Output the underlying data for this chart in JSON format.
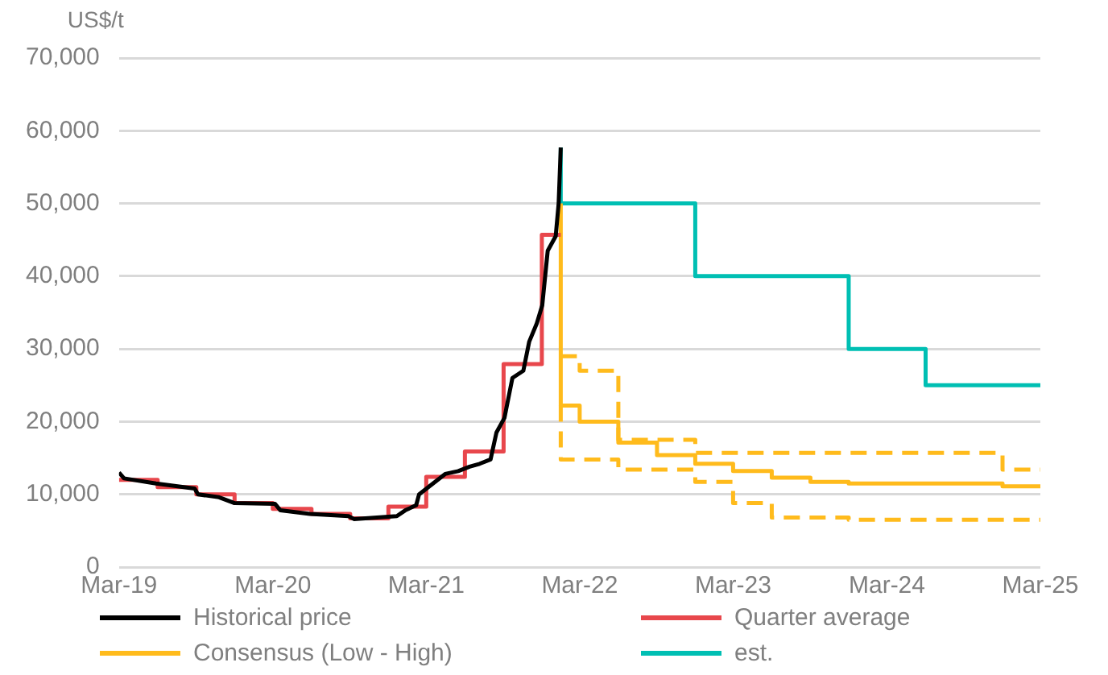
{
  "chart_data": {
    "type": "line",
    "ylabel": "US$/t",
    "legend": "bottom",
    "grid": "y",
    "line_style": "solid",
    "marker": "none",
    "ylim": [
      0,
      70000
    ],
    "yticks": [
      {
        "value": 0,
        "label": "0"
      },
      {
        "value": 10000,
        "label": "10,000"
      },
      {
        "value": 20000,
        "label": "20,000"
      },
      {
        "value": 30000,
        "label": "30,000"
      },
      {
        "value": 40000,
        "label": "40,000"
      },
      {
        "value": 50000,
        "label": "50,000"
      },
      {
        "value": 60000,
        "label": "60,000"
      },
      {
        "value": 70000,
        "label": "70,000"
      }
    ],
    "xlim": [
      "2019-03-01",
      "2025-03-01"
    ],
    "xticks": [
      {
        "value": "2019-03-01",
        "label": "Mar-19"
      },
      {
        "value": "2020-03-01",
        "label": "Mar-20"
      },
      {
        "value": "2021-03-01",
        "label": "Mar-21"
      },
      {
        "value": "2022-03-01",
        "label": "Mar-22"
      },
      {
        "value": "2023-03-01",
        "label": "Mar-23"
      },
      {
        "value": "2024-03-01",
        "label": "Mar-24"
      },
      {
        "value": "2025-03-01",
        "label": "Mar-25"
      }
    ],
    "series": [
      {
        "name": "Historical price",
        "type": "line",
        "color": "#000000",
        "x": [
          "2019-03-01",
          "2019-03-13",
          "2019-05-28",
          "2019-08-28",
          "2019-09-05",
          "2019-10-25",
          "2019-12-01",
          "2020-03-06",
          "2020-03-19",
          "2020-05-28",
          "2020-08-28",
          "2020-09-10",
          "2020-12-21",
          "2021-01-10",
          "2021-02-05",
          "2021-02-12",
          "2021-03-06",
          "2021-04-15",
          "2021-05-16",
          "2021-06-12",
          "2021-07-06",
          "2021-08-01",
          "2021-08-15",
          "2021-09-03",
          "2021-09-22",
          "2021-10-18",
          "2021-11-01",
          "2021-11-19",
          "2021-12-02",
          "2021-12-15",
          "2022-01-03",
          "2022-01-10",
          "2022-01-15"
        ],
        "values": [
          13000,
          12200,
          11500,
          10800,
          10000,
          9600,
          8800,
          8700,
          7800,
          7300,
          7000,
          6600,
          7000,
          7800,
          8500,
          10000,
          11000,
          12800,
          13200,
          13800,
          14200,
          14800,
          18500,
          20500,
          26000,
          27000,
          31000,
          33500,
          36000,
          43500,
          45500,
          50000,
          57700
        ]
      },
      {
        "name": "Quarter average",
        "type": "step",
        "color": "#e8474c",
        "x": [
          "2019-03-01",
          "2019-06-01",
          "2019-09-01",
          "2019-12-01",
          "2020-03-01",
          "2020-06-01",
          "2020-09-01",
          "2020-12-01",
          "2021-03-01",
          "2021-06-01",
          "2021-09-01",
          "2021-12-01",
          "2022-01-15"
        ],
        "values": [
          12000,
          11000,
          10000,
          8800,
          8000,
          7300,
          6700,
          8300,
          12400,
          15900,
          27900,
          45700,
          45700
        ]
      },
      {
        "name": "Consensus (Low - High)",
        "type": "step",
        "color": "#ffbb1c",
        "x": [
          "2022-01-15",
          "2022-01-15",
          "2022-03-01",
          "2022-06-01",
          "2022-09-01",
          "2022-12-01",
          "2023-03-01",
          "2023-06-01",
          "2023-09-01",
          "2023-12-01",
          "2024-12-01",
          "2025-03-01"
        ],
        "values": [
          50000,
          22200,
          20000,
          17100,
          15400,
          14200,
          13200,
          12300,
          11700,
          11500,
          11100,
          11100
        ]
      },
      {
        "type": "step",
        "color": "#ffbb1c",
        "line_style": "dashed",
        "x": [
          "2022-01-15",
          "2022-03-01",
          "2022-06-01",
          "2022-12-01",
          "2024-12-01",
          "2025-03-01"
        ],
        "values": [
          29000,
          27000,
          17500,
          15700,
          13400,
          13400
        ]
      },
      {
        "type": "step",
        "color": "#ffbb1c",
        "line_style": "dashed",
        "x": [
          "2022-01-15",
          "2022-01-15",
          "2022-06-01",
          "2022-12-01",
          "2023-03-01",
          "2023-06-01",
          "2023-12-01",
          "2025-03-01"
        ],
        "values": [
          22200,
          14800,
          13400,
          11700,
          8800,
          6800,
          6500,
          6500
        ]
      },
      {
        "name": "est.",
        "type": "step",
        "color": "#00bfb3",
        "x": [
          "2022-01-15",
          "2022-01-15",
          "2022-12-01",
          "2023-12-01",
          "2024-06-01",
          "2025-03-01"
        ],
        "values": [
          57700,
          50000,
          40000,
          30000,
          25000,
          25000
        ]
      }
    ]
  }
}
